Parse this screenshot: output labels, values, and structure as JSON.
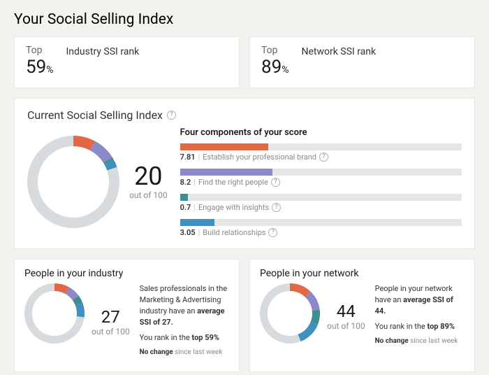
{
  "page_title": "Your Social Selling Index",
  "colors": {
    "bg": "#f3f2ef",
    "card_border": "#e6e6e6",
    "track": "#e6e6e6",
    "muted": "#8a8a8a",
    "orange": "#e16745",
    "purple": "#8a8acb",
    "teal": "#3d8f8f",
    "blue": "#3f8fbf",
    "ring_gray": "#d8dbdd"
  },
  "ranks": {
    "top_label": "Top",
    "pct_symbol": "%",
    "industry": {
      "title": "Industry SSI rank",
      "value": "59"
    },
    "network": {
      "title": "Network SSI rank",
      "value": "89"
    }
  },
  "main": {
    "title": "Current Social Selling Index",
    "score": "20",
    "out_of": "out of 100",
    "donut_max": 100,
    "segments": [
      {
        "value": 7.81,
        "color": "#e16745"
      },
      {
        "value": 8.2,
        "color": "#8a8acb"
      },
      {
        "value": 0.7,
        "color": "#3d8f8f"
      },
      {
        "value": 3.05,
        "color": "#3f8fbf"
      }
    ],
    "components_title": "Four components of your score",
    "components": [
      {
        "value": "7.81",
        "label": "Establish your professional brand",
        "color": "#e16745",
        "pct": 31.24,
        "bar_max": 25
      },
      {
        "value": "8.2",
        "label": "Find the right people",
        "color": "#8a8acb",
        "pct": 32.8,
        "bar_max": 25
      },
      {
        "value": "0.7",
        "label": "Engage with insights",
        "color": "#3d8f8f",
        "pct": 2.8,
        "bar_max": 25
      },
      {
        "value": "3.05",
        "label": "Build relationships",
        "color": "#3f8fbf",
        "pct": 12.2,
        "bar_max": 25
      }
    ]
  },
  "people": {
    "industry": {
      "title": "People in your industry",
      "score": "27",
      "out_of": "out of 100",
      "segments": [
        {
          "value": 8,
          "color": "#e16745"
        },
        {
          "value": 7,
          "color": "#8a8acb"
        },
        {
          "value": 4,
          "color": "#3d8f8f"
        },
        {
          "value": 8,
          "color": "#3f8fbf"
        }
      ],
      "line1_a": "Sales professionals in the Marketing & Advertising industry have an ",
      "line1_b_strong": "average SSI of 27.",
      "line2_a": "You rank in the ",
      "line2_b_strong": "top 59%",
      "nochange_bold": "No change",
      "nochange_muted": " since last week"
    },
    "network": {
      "title": "People in your network",
      "score": "44",
      "out_of": "out of 100",
      "segments": [
        {
          "value": 12,
          "color": "#e16745"
        },
        {
          "value": 11,
          "color": "#8a8acb"
        },
        {
          "value": 8,
          "color": "#3d8f8f"
        },
        {
          "value": 13,
          "color": "#3f8fbf"
        }
      ],
      "line1_a": "People in your network have an ",
      "line1_b_strong": "average SSI of 44.",
      "line2_a": "You rank in the ",
      "line2_b_strong": "top 89%",
      "nochange_bold": "No change",
      "nochange_muted": " since last week"
    }
  }
}
